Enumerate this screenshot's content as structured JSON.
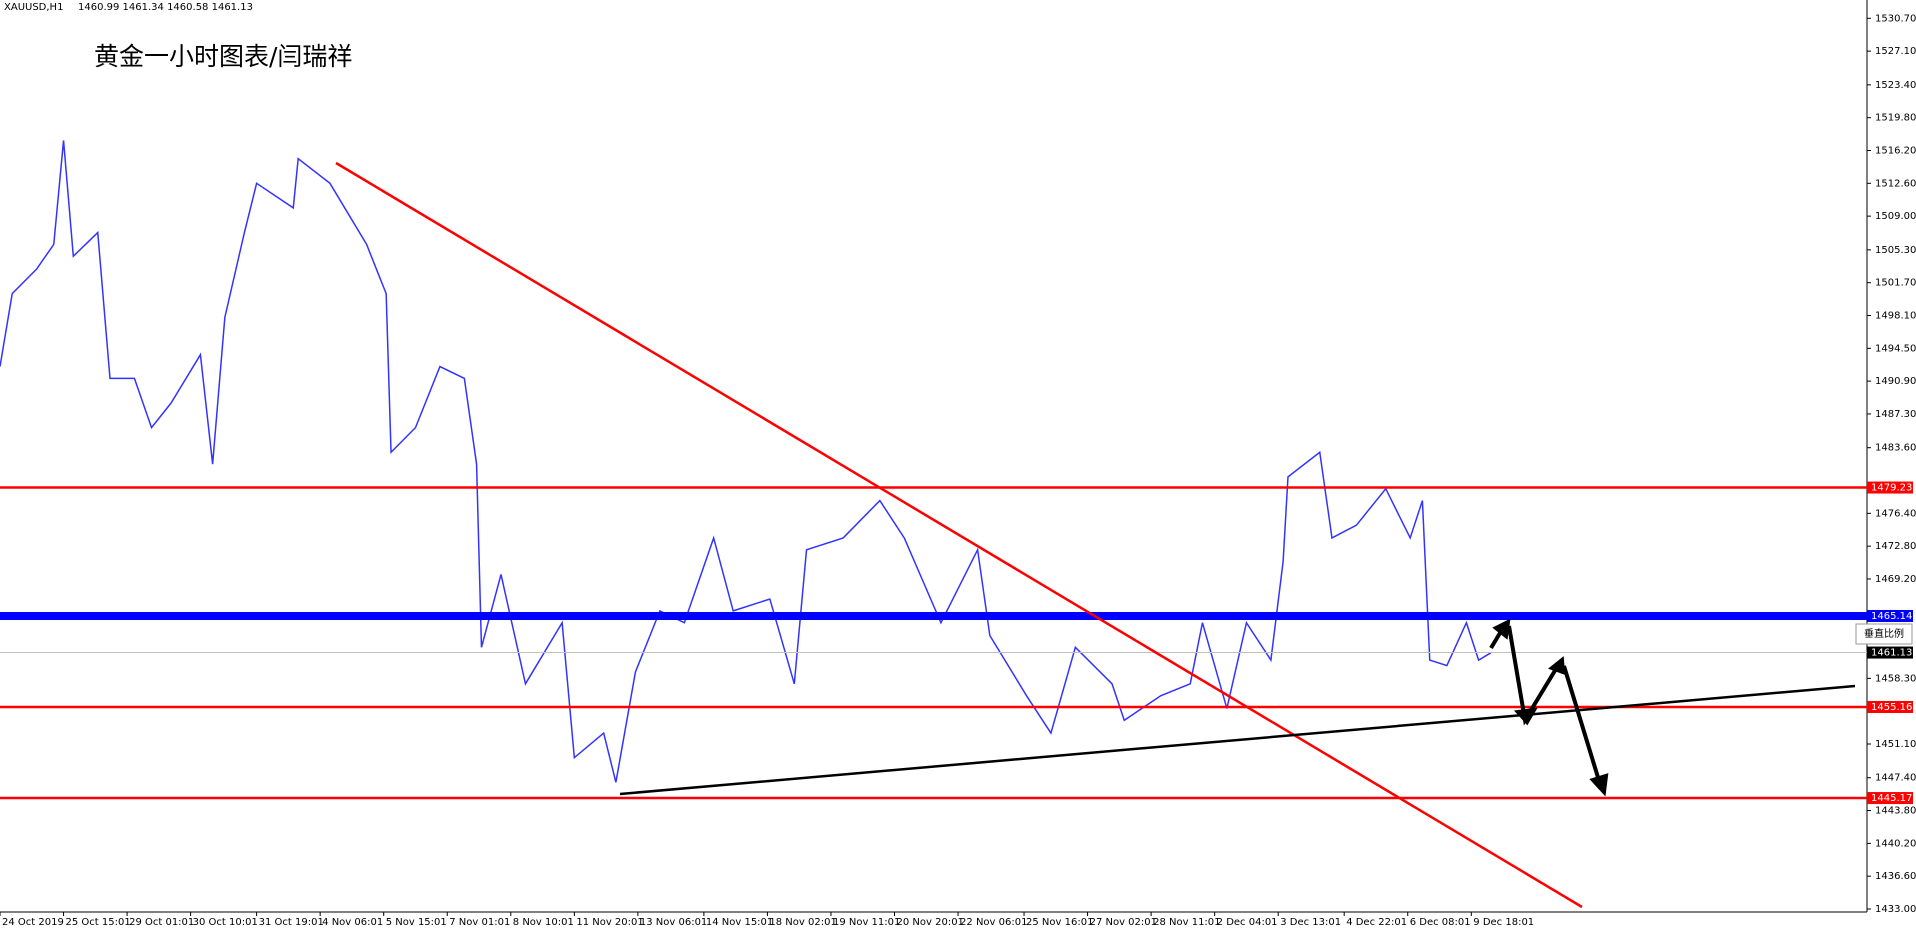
{
  "chart_data": {
    "type": "line",
    "symbol": "XAUUSD,H1",
    "quote": "1460.99 1461.34 1460.58 1461.13",
    "title": "黄金一小时图表/闫瑞祥",
    "scale_button": "垂直比例",
    "xlim": [
      0,
      764
    ],
    "ylim": [
      1433.0,
      1530.7
    ],
    "xticks": [
      {
        "value": 0,
        "label": "24 Oct 2019"
      },
      {
        "value": 26,
        "label": "25 Oct 15:01"
      },
      {
        "value": 52,
        "label": "29 Oct 01:01"
      },
      {
        "value": 78,
        "label": "30 Oct 10:01"
      },
      {
        "value": 105,
        "label": "31 Oct 19:01"
      },
      {
        "value": 131,
        "label": "4 Nov 06:01"
      },
      {
        "value": 157,
        "label": "5 Nov 15:01"
      },
      {
        "value": 183,
        "label": "7 Nov 01:01"
      },
      {
        "value": 209,
        "label": "8 Nov 10:01"
      },
      {
        "value": 235,
        "label": "11 Nov 20:01"
      },
      {
        "value": 261,
        "label": "13 Nov 06:01"
      },
      {
        "value": 288,
        "label": "14 Nov 15:01"
      },
      {
        "value": 314,
        "label": "18 Nov 02:01"
      },
      {
        "value": 340,
        "label": "19 Nov 11:01"
      },
      {
        "value": 366,
        "label": "20 Nov 20:01"
      },
      {
        "value": 392,
        "label": "22 Nov 06:01"
      },
      {
        "value": 419,
        "label": "25 Nov 16:01"
      },
      {
        "value": 445,
        "label": "27 Nov 02:01"
      },
      {
        "value": 471,
        "label": "28 Nov 11:01"
      },
      {
        "value": 497,
        "label": "2 Dec 04:01"
      },
      {
        "value": 523,
        "label": "3 Dec 13:01"
      },
      {
        "value": 550,
        "label": "4 Dec 22:01"
      },
      {
        "value": 576,
        "label": "6 Dec 08:01"
      },
      {
        "value": 602,
        "label": "9 Dec 18:01"
      }
    ],
    "yticks": [
      {
        "value": 1530.7,
        "label": "1530.70"
      },
      {
        "value": 1527.1,
        "label": "1527.10"
      },
      {
        "value": 1523.4,
        "label": "1523.40"
      },
      {
        "value": 1519.8,
        "label": "1519.80"
      },
      {
        "value": 1516.2,
        "label": "1516.20"
      },
      {
        "value": 1512.6,
        "label": "1512.60"
      },
      {
        "value": 1509.0,
        "label": "1509.00"
      },
      {
        "value": 1505.3,
        "label": "1505.30"
      },
      {
        "value": 1501.7,
        "label": "1501.70"
      },
      {
        "value": 1498.1,
        "label": "1498.10"
      },
      {
        "value": 1494.5,
        "label": "1494.50"
      },
      {
        "value": 1490.9,
        "label": "1490.90"
      },
      {
        "value": 1487.3,
        "label": "1487.30"
      },
      {
        "value": 1483.6,
        "label": "1483.60"
      },
      {
        "value": 1476.4,
        "label": "1476.40"
      },
      {
        "value": 1472.8,
        "label": "1472.80"
      },
      {
        "value": 1469.2,
        "label": "1469.20"
      },
      {
        "value": 1458.3,
        "label": "1458.30"
      },
      {
        "value": 1451.1,
        "label": "1451.10"
      },
      {
        "value": 1447.4,
        "label": "1447.40"
      },
      {
        "value": 1443.8,
        "label": "1443.80"
      },
      {
        "value": 1440.2,
        "label": "1440.20"
      },
      {
        "value": 1436.6,
        "label": "1436.60"
      },
      {
        "value": 1433.0,
        "label": "1433.00"
      }
    ],
    "levels": [
      {
        "value": 1479.23,
        "color": "#ff0000"
      },
      {
        "value": 1465.14,
        "color": "#0000ff"
      },
      {
        "value": 1461.13,
        "color": "#c0c0c0"
      },
      {
        "value": 1455.16,
        "color": "#ff0000"
      },
      {
        "value": 1445.17,
        "color": "#ff0000"
      }
    ],
    "series": [
      {
        "name": "XAUUSD",
        "color": "#3333ff",
        "x": [
          0,
          5,
          15,
          22,
          26,
          30,
          40,
          45,
          55,
          62,
          70,
          82,
          87,
          92,
          100,
          105,
          120,
          122,
          135,
          150,
          158,
          160,
          170,
          180,
          190,
          195,
          197,
          205,
          215,
          230,
          235,
          247,
          252,
          260,
          270,
          280,
          292,
          300,
          315,
          325,
          330,
          345,
          360,
          370,
          385,
          400,
          405,
          420,
          430,
          440,
          455,
          460,
          475,
          487,
          492,
          502,
          510,
          520,
          525,
          527,
          540,
          545,
          555,
          567,
          577,
          582,
          585,
          592,
          600,
          605,
          610
        ],
        "values": [
          1492.5,
          1500.5,
          1503.2,
          1505.9,
          1517.3,
          1504.6,
          1507.2,
          1491.2,
          1491.2,
          1485.8,
          1488.5,
          1493.8,
          1481.8,
          1497.9,
          1507.2,
          1512.6,
          1509.9,
          1515.3,
          1512.6,
          1505.9,
          1500.5,
          1483.1,
          1485.8,
          1492.5,
          1491.2,
          1481.8,
          1461.7,
          1469.7,
          1457.7,
          1464.4,
          1449.6,
          1452.3,
          1446.9,
          1459.0,
          1465.7,
          1464.4,
          1473.7,
          1465.7,
          1467.0,
          1457.7,
          1472.4,
          1473.7,
          1477.8,
          1473.7,
          1464.4,
          1472.4,
          1463.0,
          1456.4,
          1452.3,
          1461.7,
          1457.7,
          1453.7,
          1456.4,
          1457.7,
          1464.4,
          1455.0,
          1464.4,
          1460.3,
          1471.1,
          1480.4,
          1483.1,
          1473.7,
          1475.1,
          1479.1,
          1473.7,
          1477.8,
          1460.3,
          1459.7,
          1464.4,
          1460.3,
          1461.1
        ]
      }
    ]
  }
}
